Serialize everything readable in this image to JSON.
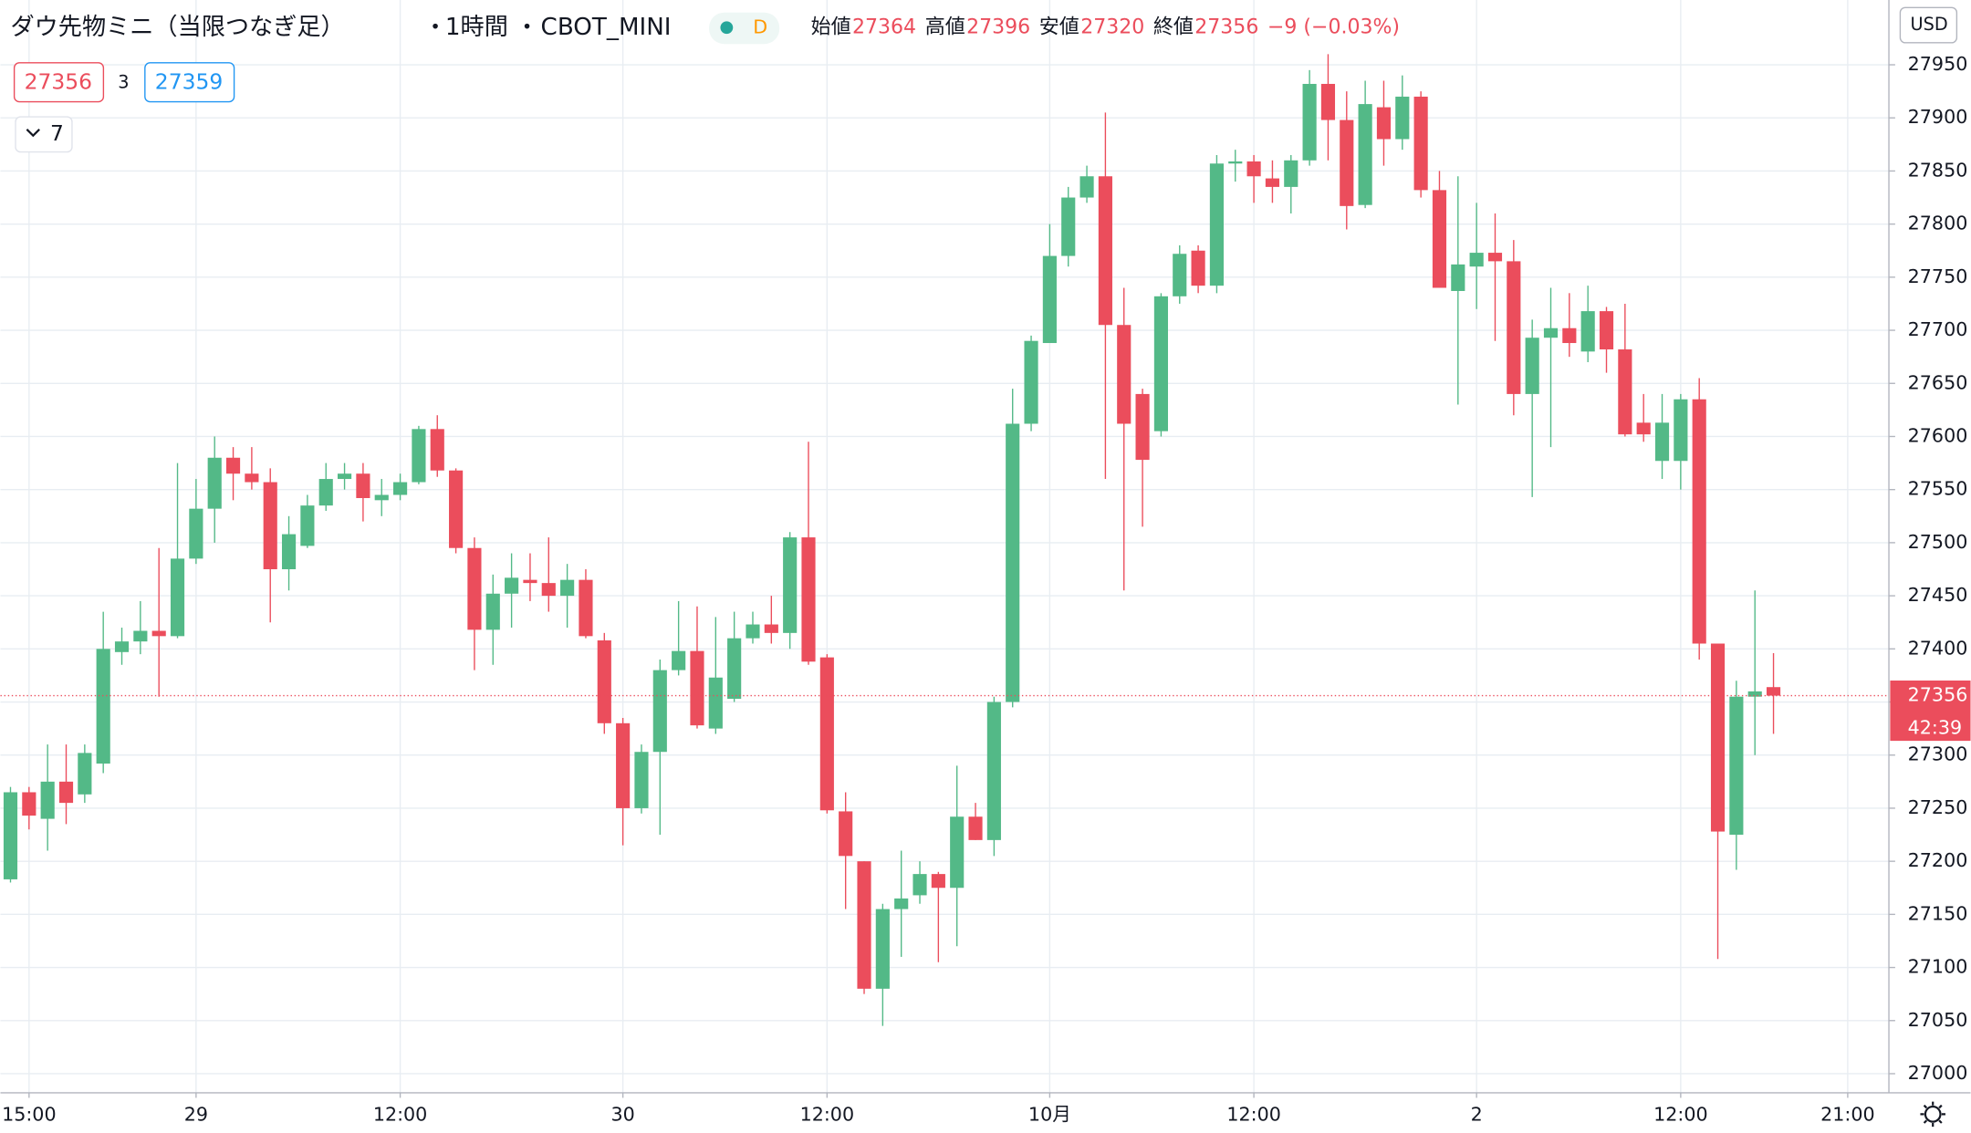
{
  "header": {
    "symbol": "ダウ先物ミニ（当限つなぎ足）",
    "interval": "1時間",
    "exchange": "CBOT_MINI",
    "flag": "D",
    "ohlc": [
      {
        "label": "始値",
        "value": 27364
      },
      {
        "label": "高値",
        "value": 27396
      },
      {
        "label": "安値",
        "value": 27320
      },
      {
        "label": "終値",
        "value": 27356
      }
    ],
    "change": "−9 (−0.03%)"
  },
  "toolbar": {
    "sell": "27356",
    "spread": "3",
    "buy": "27359",
    "indicators": "7"
  },
  "price_axis": {
    "currency": "USD",
    "countdown": "42:39"
  },
  "chart_data": {
    "type": "candlestick",
    "categories": [
      null,
      "15:00",
      null,
      null,
      null,
      null,
      null,
      null,
      null,
      null,
      "29",
      null,
      null,
      null,
      null,
      null,
      null,
      null,
      null,
      null,
      null,
      "12:00",
      null,
      null,
      null,
      null,
      null,
      null,
      null,
      null,
      null,
      null,
      null,
      "30",
      null,
      null,
      null,
      null,
      null,
      null,
      null,
      null,
      null,
      null,
      "12:00",
      null,
      null,
      null,
      null,
      null,
      null,
      null,
      null,
      null,
      null,
      null,
      "10月",
      null,
      null,
      null,
      null,
      null,
      null,
      null,
      null,
      null,
      null,
      "12:00",
      null,
      null,
      null,
      null,
      null,
      null,
      null,
      null,
      null,
      null,
      null,
      "2",
      null,
      null,
      null,
      null,
      null,
      null,
      null,
      null,
      null,
      null,
      "12:00",
      null,
      null,
      null,
      null,
      null,
      null,
      null,
      null,
      "21:00"
    ],
    "open": [
      27183,
      27265,
      27240,
      27275,
      27263,
      27292,
      27397,
      27407,
      27417,
      27412,
      27485,
      27532,
      27580,
      27565,
      27557,
      27475,
      27497,
      27535,
      27560,
      27565,
      27540,
      27545,
      27557,
      27607,
      27568,
      27495,
      27418,
      27452,
      27465,
      27462,
      27450,
      27465,
      27408,
      27330,
      27250,
      27303,
      27380,
      27398,
      27325,
      27353,
      27410,
      27423,
      27415,
      27505,
      27392,
      27247,
      27200,
      27080,
      27155,
      27168,
      27188,
      27175,
      27242,
      27220,
      27350,
      27612,
      27688,
      27770,
      27825,
      27845,
      27705,
      27640,
      27605,
      27732,
      27775,
      27742,
      27857,
      27859,
      27843,
      27835,
      27860,
      27932,
      27898,
      27818,
      27910,
      27880,
      27920,
      27832,
      27737,
      27760,
      27773,
      27765,
      27640,
      27693,
      27702,
      27680,
      27718,
      27682,
      27613,
      27577,
      27577,
      27635,
      27405,
      27225,
      27355,
      27364,
      null,
      null,
      null,
      null
    ],
    "high": [
      27270,
      27270,
      27310,
      27310,
      27310,
      27435,
      27420,
      27445,
      27495,
      27575,
      27560,
      27600,
      27590,
      27590,
      27570,
      27525,
      27545,
      27575,
      27575,
      27575,
      27560,
      27565,
      27610,
      27620,
      27570,
      27505,
      27470,
      27490,
      27490,
      27505,
      27480,
      27475,
      27415,
      27335,
      27310,
      27390,
      27445,
      27440,
      27430,
      27435,
      27435,
      27450,
      27510,
      27595,
      27395,
      27265,
      27200,
      27160,
      27210,
      27200,
      27190,
      27290,
      27255,
      27355,
      27645,
      27695,
      27800,
      27835,
      27855,
      27905,
      27740,
      27645,
      27735,
      27780,
      27780,
      27865,
      27870,
      27865,
      27860,
      27865,
      27945,
      27960,
      27925,
      27935,
      27935,
      27940,
      27925,
      27850,
      27845,
      27820,
      27810,
      27785,
      27710,
      27740,
      27735,
      27742,
      27722,
      27725,
      27640,
      27640,
      27640,
      27655,
      27405,
      27370,
      27455,
      27396,
      null,
      null,
      null,
      null
    ],
    "low": [
      27180,
      27230,
      27210,
      27235,
      27255,
      27283,
      27385,
      27395,
      27355,
      27410,
      27480,
      27500,
      27540,
      27550,
      27425,
      27455,
      27495,
      27530,
      27550,
      27520,
      27525,
      27540,
      27555,
      27562,
      27490,
      27380,
      27385,
      27420,
      27445,
      27435,
      27420,
      27410,
      27320,
      27215,
      27245,
      27225,
      27375,
      27325,
      27320,
      27350,
      27405,
      27405,
      27400,
      27385,
      27245,
      27155,
      27075,
      27045,
      27110,
      27160,
      27105,
      27120,
      27220,
      27205,
      27345,
      27605,
      27688,
      27760,
      27820,
      27560,
      27455,
      27515,
      27600,
      27725,
      27735,
      27735,
      27840,
      27820,
      27820,
      27810,
      27855,
      27860,
      27795,
      27815,
      27855,
      27870,
      27825,
      27740,
      27630,
      27720,
      27690,
      27620,
      27543,
      27590,
      27675,
      27670,
      27660,
      27600,
      27595,
      27560,
      27550,
      27390,
      27108,
      27192,
      27300,
      27320,
      null,
      null,
      null,
      null
    ],
    "close": [
      27265,
      27243,
      27275,
      27255,
      27302,
      27400,
      27407,
      27417,
      27412,
      27485,
      27532,
      27580,
      27565,
      27557,
      27475,
      27508,
      27535,
      27560,
      27565,
      27542,
      27545,
      27557,
      27607,
      27568,
      27495,
      27418,
      27452,
      27467,
      27462,
      27450,
      27465,
      27412,
      27330,
      27250,
      27303,
      27380,
      27398,
      27328,
      27373,
      27410,
      27423,
      27415,
      27505,
      27388,
      27248,
      27205,
      27080,
      27155,
      27165,
      27188,
      27175,
      27242,
      27220,
      27350,
      27612,
      27690,
      27770,
      27825,
      27845,
      27705,
      27612,
      27578,
      27732,
      27772,
      27742,
      27857,
      27859,
      27845,
      27835,
      27860,
      27932,
      27898,
      27817,
      27913,
      27880,
      27920,
      27832,
      27740,
      27762,
      27773,
      27765,
      27640,
      27693,
      27702,
      27688,
      27718,
      27682,
      27602,
      27602,
      27613,
      27635,
      27405,
      27228,
      27355,
      27360,
      27356,
      null,
      null,
      null,
      null
    ],
    "up_color": "#53b987",
    "down_color": "#eb4d5c",
    "ylim": [
      26982,
      28011
    ],
    "yticks": [
      27000,
      27050,
      27100,
      27150,
      27200,
      27250,
      27300,
      27350,
      27400,
      27450,
      27500,
      27550,
      27600,
      27650,
      27700,
      27750,
      27800,
      27850,
      27900,
      27950
    ],
    "grid": true
  }
}
